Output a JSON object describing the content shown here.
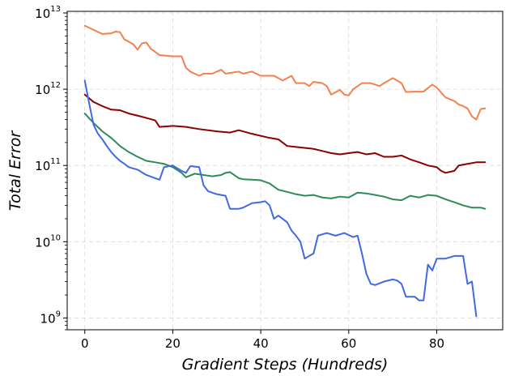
{
  "chart_data": {
    "type": "line",
    "title": "",
    "xlabel": "Gradient Steps (Hundreds)",
    "ylabel": "Total Error",
    "xlim": [
      -4,
      95
    ],
    "ylim": [
      700000000.0,
      10500000000000.0
    ],
    "yscale": "log",
    "grid": true,
    "legend": "none",
    "x_ticks": [
      0,
      20,
      40,
      60,
      80
    ],
    "y_ticks": [
      {
        "value": 1000000000.0,
        "base": "10",
        "exp": "9"
      },
      {
        "value": 10000000000.0,
        "base": "10",
        "exp": "10"
      },
      {
        "value": 100000000000.0,
        "base": "10",
        "exp": "11"
      },
      {
        "value": 1000000000000.0,
        "base": "10",
        "exp": "12"
      },
      {
        "value": 10000000000000.0,
        "base": "10",
        "exp": "13"
      }
    ],
    "series": [
      {
        "color": "#f4804f",
        "points": [
          [
            0,
            6800000000000.0
          ],
          [
            2,
            6000000000000.0
          ],
          [
            4,
            5300000000000.0
          ],
          [
            6,
            5400000000000.0
          ],
          [
            7,
            5700000000000.0
          ],
          [
            8,
            5600000000000.0
          ],
          [
            9,
            4500000000000.0
          ],
          [
            11,
            3900000000000.0
          ],
          [
            12,
            3300000000000.0
          ],
          [
            13,
            4000000000000.0
          ],
          [
            14,
            4100000000000.0
          ],
          [
            15,
            3400000000000.0
          ],
          [
            17,
            2800000000000.0
          ],
          [
            20,
            2700000000000.0
          ],
          [
            22,
            2700000000000.0
          ],
          [
            23,
            1900000000000.0
          ],
          [
            24,
            1700000000000.0
          ],
          [
            26,
            1500000000000.0
          ],
          [
            27,
            1600000000000.0
          ],
          [
            29,
            1600000000000.0
          ],
          [
            31,
            1800000000000.0
          ],
          [
            32,
            1600000000000.0
          ],
          [
            35,
            1700000000000.0
          ],
          [
            36,
            1600000000000.0
          ],
          [
            38,
            1700000000000.0
          ],
          [
            40,
            1500000000000.0
          ],
          [
            43,
            1500000000000.0
          ],
          [
            45,
            1300000000000.0
          ],
          [
            47,
            1500000000000.0
          ],
          [
            48,
            1200000000000.0
          ],
          [
            50,
            1200000000000.0
          ],
          [
            51,
            1100000000000.0
          ],
          [
            52,
            1250000000000.0
          ],
          [
            54,
            1200000000000.0
          ],
          [
            55,
            1100000000000.0
          ],
          [
            56,
            850000000000.0
          ],
          [
            58,
            980000000000.0
          ],
          [
            59,
            850000000000.0
          ],
          [
            60,
            830000000000.0
          ],
          [
            61,
            1000000000000.0
          ],
          [
            63,
            1200000000000.0
          ],
          [
            65,
            1200000000000.0
          ],
          [
            67,
            1100000000000.0
          ],
          [
            68,
            1200000000000.0
          ],
          [
            70,
            1400000000000.0
          ],
          [
            71,
            1300000000000.0
          ],
          [
            72,
            1200000000000.0
          ],
          [
            73,
            920000000000.0
          ],
          [
            75,
            930000000000.0
          ],
          [
            77,
            930000000000.0
          ],
          [
            79,
            1150000000000.0
          ],
          [
            80,
            1050000000000.0
          ],
          [
            82,
            780000000000.0
          ],
          [
            84,
            700000000000.0
          ],
          [
            85,
            630000000000.0
          ],
          [
            86,
            600000000000.0
          ],
          [
            87,
            560000000000.0
          ],
          [
            88,
            440000000000.0
          ],
          [
            89,
            400000000000.0
          ],
          [
            90,
            550000000000.0
          ],
          [
            91,
            560000000000.0
          ]
        ]
      },
      {
        "color": "#8b0000",
        "points": [
          [
            0,
            850000000000.0
          ],
          [
            2,
            680000000000.0
          ],
          [
            4,
            600000000000.0
          ],
          [
            6,
            540000000000.0
          ],
          [
            8,
            530000000000.0
          ],
          [
            10,
            480000000000.0
          ],
          [
            12,
            450000000000.0
          ],
          [
            14,
            420000000000.0
          ],
          [
            16,
            390000000000.0
          ],
          [
            17,
            320000000000.0
          ],
          [
            20,
            330000000000.0
          ],
          [
            23,
            320000000000.0
          ],
          [
            26,
            300000000000.0
          ],
          [
            30,
            280000000000.0
          ],
          [
            33,
            270000000000.0
          ],
          [
            35,
            290000000000.0
          ],
          [
            38,
            260000000000.0
          ],
          [
            42,
            230000000000.0
          ],
          [
            44,
            220000000000.0
          ],
          [
            46,
            180000000000.0
          ],
          [
            48,
            175000000000.0
          ],
          [
            52,
            165000000000.0
          ],
          [
            54,
            155000000000.0
          ],
          [
            56,
            145000000000.0
          ],
          [
            58,
            140000000000.0
          ],
          [
            60,
            145000000000.0
          ],
          [
            62,
            150000000000.0
          ],
          [
            64,
            140000000000.0
          ],
          [
            66,
            145000000000.0
          ],
          [
            68,
            130000000000.0
          ],
          [
            70,
            130000000000.0
          ],
          [
            72,
            135000000000.0
          ],
          [
            74,
            120000000000.0
          ],
          [
            76,
            110000000000.0
          ],
          [
            78,
            100000000000.0
          ],
          [
            80,
            95000000000.0
          ],
          [
            81,
            85000000000.0
          ],
          [
            82,
            80000000000.0
          ],
          [
            84,
            85000000000.0
          ],
          [
            85,
            100000000000.0
          ],
          [
            87,
            105000000000.0
          ],
          [
            89,
            110000000000.0
          ],
          [
            91,
            110000000000.0
          ]
        ]
      },
      {
        "color": "#2e8b57",
        "points": [
          [
            0,
            480000000000.0
          ],
          [
            2,
            360000000000.0
          ],
          [
            4,
            280000000000.0
          ],
          [
            6,
            230000000000.0
          ],
          [
            8,
            180000000000.0
          ],
          [
            10,
            150000000000.0
          ],
          [
            12,
            130000000000.0
          ],
          [
            14,
            115000000000.0
          ],
          [
            16,
            110000000000.0
          ],
          [
            18,
            105000000000.0
          ],
          [
            20,
            95000000000.0
          ],
          [
            22,
            80000000000.0
          ],
          [
            23,
            70000000000.0
          ],
          [
            25,
            78000000000.0
          ],
          [
            27,
            75000000000.0
          ],
          [
            29,
            72000000000.0
          ],
          [
            31,
            75000000000.0
          ],
          [
            32,
            80000000000.0
          ],
          [
            33,
            82000000000.0
          ],
          [
            35,
            68000000000.0
          ],
          [
            36,
            66000000000.0
          ],
          [
            38,
            65000000000.0
          ],
          [
            40,
            64000000000.0
          ],
          [
            42,
            58000000000.0
          ],
          [
            44,
            48000000000.0
          ],
          [
            46,
            45000000000.0
          ],
          [
            48,
            42000000000.0
          ],
          [
            50,
            40000000000.0
          ],
          [
            52,
            41000000000.0
          ],
          [
            54,
            38000000000.0
          ],
          [
            56,
            37000000000.0
          ],
          [
            58,
            39000000000.0
          ],
          [
            60,
            38000000000.0
          ],
          [
            62,
            44000000000.0
          ],
          [
            64,
            43000000000.0
          ],
          [
            66,
            41000000000.0
          ],
          [
            68,
            39000000000.0
          ],
          [
            70,
            36000000000.0
          ],
          [
            72,
            35000000000.0
          ],
          [
            74,
            40000000000.0
          ],
          [
            76,
            38000000000.0
          ],
          [
            78,
            41000000000.0
          ],
          [
            80,
            40000000000.0
          ],
          [
            82,
            36000000000.0
          ],
          [
            84,
            33000000000.0
          ],
          [
            86,
            30000000000.0
          ],
          [
            88,
            28000000000.0
          ],
          [
            90,
            28000000000.0
          ],
          [
            91,
            27000000000.0
          ]
        ]
      },
      {
        "color": "#4169e1",
        "points": [
          [
            0,
            1300000000000.0
          ],
          [
            1,
            650000000000.0
          ],
          [
            2,
            340000000000.0
          ],
          [
            3,
            260000000000.0
          ],
          [
            4,
            220000000000.0
          ],
          [
            5,
            180000000000.0
          ],
          [
            6,
            150000000000.0
          ],
          [
            7,
            130000000000.0
          ],
          [
            8,
            115000000000.0
          ],
          [
            9,
            105000000000.0
          ],
          [
            10,
            95000000000.0
          ],
          [
            12,
            88000000000.0
          ],
          [
            14,
            75000000000.0
          ],
          [
            16,
            68000000000.0
          ],
          [
            17,
            65000000000.0
          ],
          [
            18,
            95000000000.0
          ],
          [
            20,
            100000000000.0
          ],
          [
            22,
            85000000000.0
          ],
          [
            23,
            80000000000.0
          ],
          [
            24,
            98000000000.0
          ],
          [
            26,
            95000000000.0
          ],
          [
            27,
            55000000000.0
          ],
          [
            28,
            46000000000.0
          ],
          [
            30,
            42000000000.0
          ],
          [
            32,
            40000000000.0
          ],
          [
            33,
            27000000000.0
          ],
          [
            35,
            27000000000.0
          ],
          [
            36,
            28000000000.0
          ],
          [
            38,
            32000000000.0
          ],
          [
            40,
            33000000000.0
          ],
          [
            41,
            34000000000.0
          ],
          [
            42,
            30000000000.0
          ],
          [
            43,
            20000000000.0
          ],
          [
            44,
            22000000000.0
          ],
          [
            46,
            18000000000.0
          ],
          [
            47,
            14000000000.0
          ],
          [
            48,
            12000000000.0
          ],
          [
            49,
            10000000000.0
          ],
          [
            50,
            6000000000.0
          ],
          [
            51,
            6500000000.0
          ],
          [
            52,
            7000000000.0
          ],
          [
            53,
            12000000000.0
          ],
          [
            55,
            13000000000.0
          ],
          [
            57,
            12000000000.0
          ],
          [
            59,
            13000000000.0
          ],
          [
            61,
            11500000000.0
          ],
          [
            62,
            12000000000.0
          ],
          [
            63,
            7000000000.0
          ],
          [
            64,
            3800000000.0
          ],
          [
            65,
            2800000000.0
          ],
          [
            66,
            2700000000.0
          ],
          [
            68,
            3000000000.0
          ],
          [
            70,
            3200000000.0
          ],
          [
            71,
            3100000000.0
          ],
          [
            72,
            2800000000.0
          ],
          [
            73,
            1900000000.0
          ],
          [
            75,
            1900000000.0
          ],
          [
            76,
            1700000000.0
          ],
          [
            77,
            1700000000.0
          ],
          [
            78,
            5000000000.0
          ],
          [
            79,
            4200000000.0
          ],
          [
            80,
            6000000000.0
          ],
          [
            82,
            6000000000.0
          ],
          [
            84,
            6500000000.0
          ],
          [
            86,
            6500000000.0
          ],
          [
            87,
            2800000000.0
          ],
          [
            88,
            3000000000.0
          ],
          [
            89,
            1050000000.0
          ]
        ]
      }
    ]
  }
}
